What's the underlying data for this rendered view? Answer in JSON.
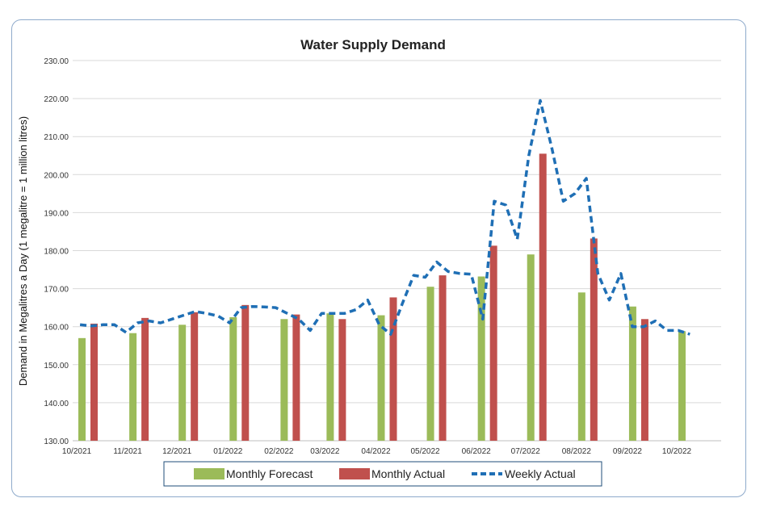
{
  "chart_data": {
    "type": "bar+line",
    "title": "Water Supply Demand",
    "ylabel": "Demand in Megalitres a Day (1 megalitre = 1 million litres)",
    "xlabel": "",
    "ylim": [
      130,
      230
    ],
    "xlim": [
      "2021-10-01",
      "2022-10-31"
    ],
    "yticks": [
      "130.00",
      "140.00",
      "150.00",
      "160.00",
      "170.00",
      "180.00",
      "190.00",
      "200.00",
      "210.00",
      "220.00",
      "230.00"
    ],
    "grid": true,
    "legend_position": "bottom",
    "colors": {
      "forecast": "#9bbb59",
      "actual": "#c0504d",
      "weekly": "#1f6fb5",
      "grid": "#d9d9d9",
      "frame": "#8eaacb"
    },
    "categories": [
      "10/2021",
      "11/2021",
      "12/2021",
      "01/2022",
      "02/2022",
      "03/2022",
      "04/2022",
      "05/2022",
      "06/2022",
      "07/2022",
      "08/2022",
      "09/2022",
      "10/2022"
    ],
    "series": [
      {
        "name": "Monthly Forecast",
        "type": "bar",
        "values": [
          157.0,
          158.3,
          160.5,
          162.5,
          162.0,
          163.5,
          163.0,
          170.5,
          173.2,
          179.0,
          169.0,
          165.3,
          158.8
        ]
      },
      {
        "name": "Monthly Actual",
        "type": "bar",
        "values": [
          160.8,
          162.3,
          163.8,
          165.7,
          163.2,
          162.0,
          167.7,
          173.5,
          181.3,
          205.5,
          183.2,
          162.0,
          null
        ]
      },
      {
        "name": "Weekly Actual",
        "type": "line-dashed",
        "points": [
          [
            "2021-10-03",
            160.5
          ],
          [
            "2021-10-10",
            160.2
          ],
          [
            "2021-10-17",
            160.5
          ],
          [
            "2021-10-24",
            160.5
          ],
          [
            "2021-10-31",
            158.5
          ],
          [
            "2021-11-07",
            161.0
          ],
          [
            "2021-11-14",
            161.5
          ],
          [
            "2021-11-21",
            161.0
          ],
          [
            "2021-11-28",
            162.0
          ],
          [
            "2021-12-05",
            163.0
          ],
          [
            "2021-12-12",
            164.0
          ],
          [
            "2021-12-19",
            163.5
          ],
          [
            "2021-12-26",
            162.8
          ],
          [
            "2022-01-02",
            161.0
          ],
          [
            "2022-01-09",
            165.0
          ],
          [
            "2022-01-16",
            165.3
          ],
          [
            "2022-01-23",
            165.2
          ],
          [
            "2022-01-30",
            165.0
          ],
          [
            "2022-02-06",
            163.5
          ],
          [
            "2022-02-13",
            162.0
          ],
          [
            "2022-02-20",
            159.0
          ],
          [
            "2022-02-27",
            163.5
          ],
          [
            "2022-03-06",
            163.5
          ],
          [
            "2022-03-13",
            163.5
          ],
          [
            "2022-03-20",
            164.5
          ],
          [
            "2022-03-27",
            167.0
          ],
          [
            "2022-04-03",
            160.5
          ],
          [
            "2022-04-10",
            158.0
          ],
          [
            "2022-04-17",
            166.0
          ],
          [
            "2022-04-24",
            173.5
          ],
          [
            "2022-05-01",
            173.0
          ],
          [
            "2022-05-08",
            177.0
          ],
          [
            "2022-05-15",
            174.5
          ],
          [
            "2022-05-22",
            174.0
          ],
          [
            "2022-05-29",
            173.8
          ],
          [
            "2022-06-05",
            162.0
          ],
          [
            "2022-06-12",
            193.0
          ],
          [
            "2022-06-19",
            192.0
          ],
          [
            "2022-06-26",
            183.0
          ],
          [
            "2022-07-03",
            205.0
          ],
          [
            "2022-07-10",
            219.5
          ],
          [
            "2022-07-17",
            207.0
          ],
          [
            "2022-07-24",
            193.0
          ],
          [
            "2022-07-31",
            195.0
          ],
          [
            "2022-08-07",
            199.0
          ],
          [
            "2022-08-14",
            174.0
          ],
          [
            "2022-08-21",
            167.0
          ],
          [
            "2022-08-28",
            174.0
          ],
          [
            "2022-09-04",
            160.0
          ],
          [
            "2022-09-11",
            160.0
          ],
          [
            "2022-09-18",
            161.5
          ],
          [
            "2022-09-25",
            159.0
          ],
          [
            "2022-10-02",
            159.0
          ],
          [
            "2022-10-09",
            158.0
          ]
        ]
      }
    ]
  }
}
